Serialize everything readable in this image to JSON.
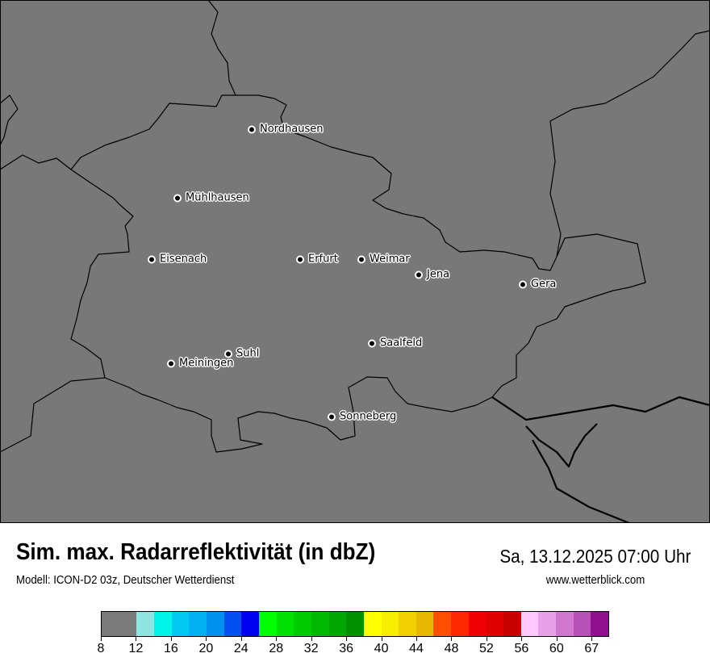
{
  "header": {
    "title": "Sim. max. Radarreflektivität (in dbZ)",
    "subtitle": "Modell: ICON-D2 03z, Deutscher Wetterdienst",
    "datetime": "Sa, 13.12.2025 07:00 Uhr",
    "website": "www.wetterblick.com"
  },
  "map": {
    "background_color": "#787878",
    "border_color": "#000000",
    "cities": [
      {
        "name": "Nordhausen"
      },
      {
        "name": "Mühlhausen"
      },
      {
        "name": "Eisenach"
      },
      {
        "name": "Erfurt"
      },
      {
        "name": "Weimar"
      },
      {
        "name": "Jena"
      },
      {
        "name": "Gera"
      },
      {
        "name": "Saalfeld"
      },
      {
        "name": "Suhl"
      },
      {
        "name": "Meiningen"
      },
      {
        "name": "Sonneberg"
      }
    ]
  },
  "legend": {
    "colors": [
      "#7a7a7a",
      "#8ee4e0",
      "#00f5e8",
      "#00c8f0",
      "#00b0f0",
      "#0090f0",
      "#0050f0",
      "#0000f0",
      "#00ff00",
      "#00e000",
      "#00cc00",
      "#00b800",
      "#00a800",
      "#009000",
      "#ffff00",
      "#f8ec00",
      "#f0d000",
      "#e8b800",
      "#ff5000",
      "#ff2800",
      "#f00000",
      "#e00000",
      "#c80000",
      "#ffc8ff",
      "#e8a0e8",
      "#d078d0",
      "#b850b8",
      "#901090"
    ],
    "tick_labels": [
      "8",
      "12",
      "16",
      "20",
      "24",
      "28",
      "32",
      "36",
      "40",
      "44",
      "48",
      "52",
      "56",
      "60",
      "67"
    ]
  }
}
